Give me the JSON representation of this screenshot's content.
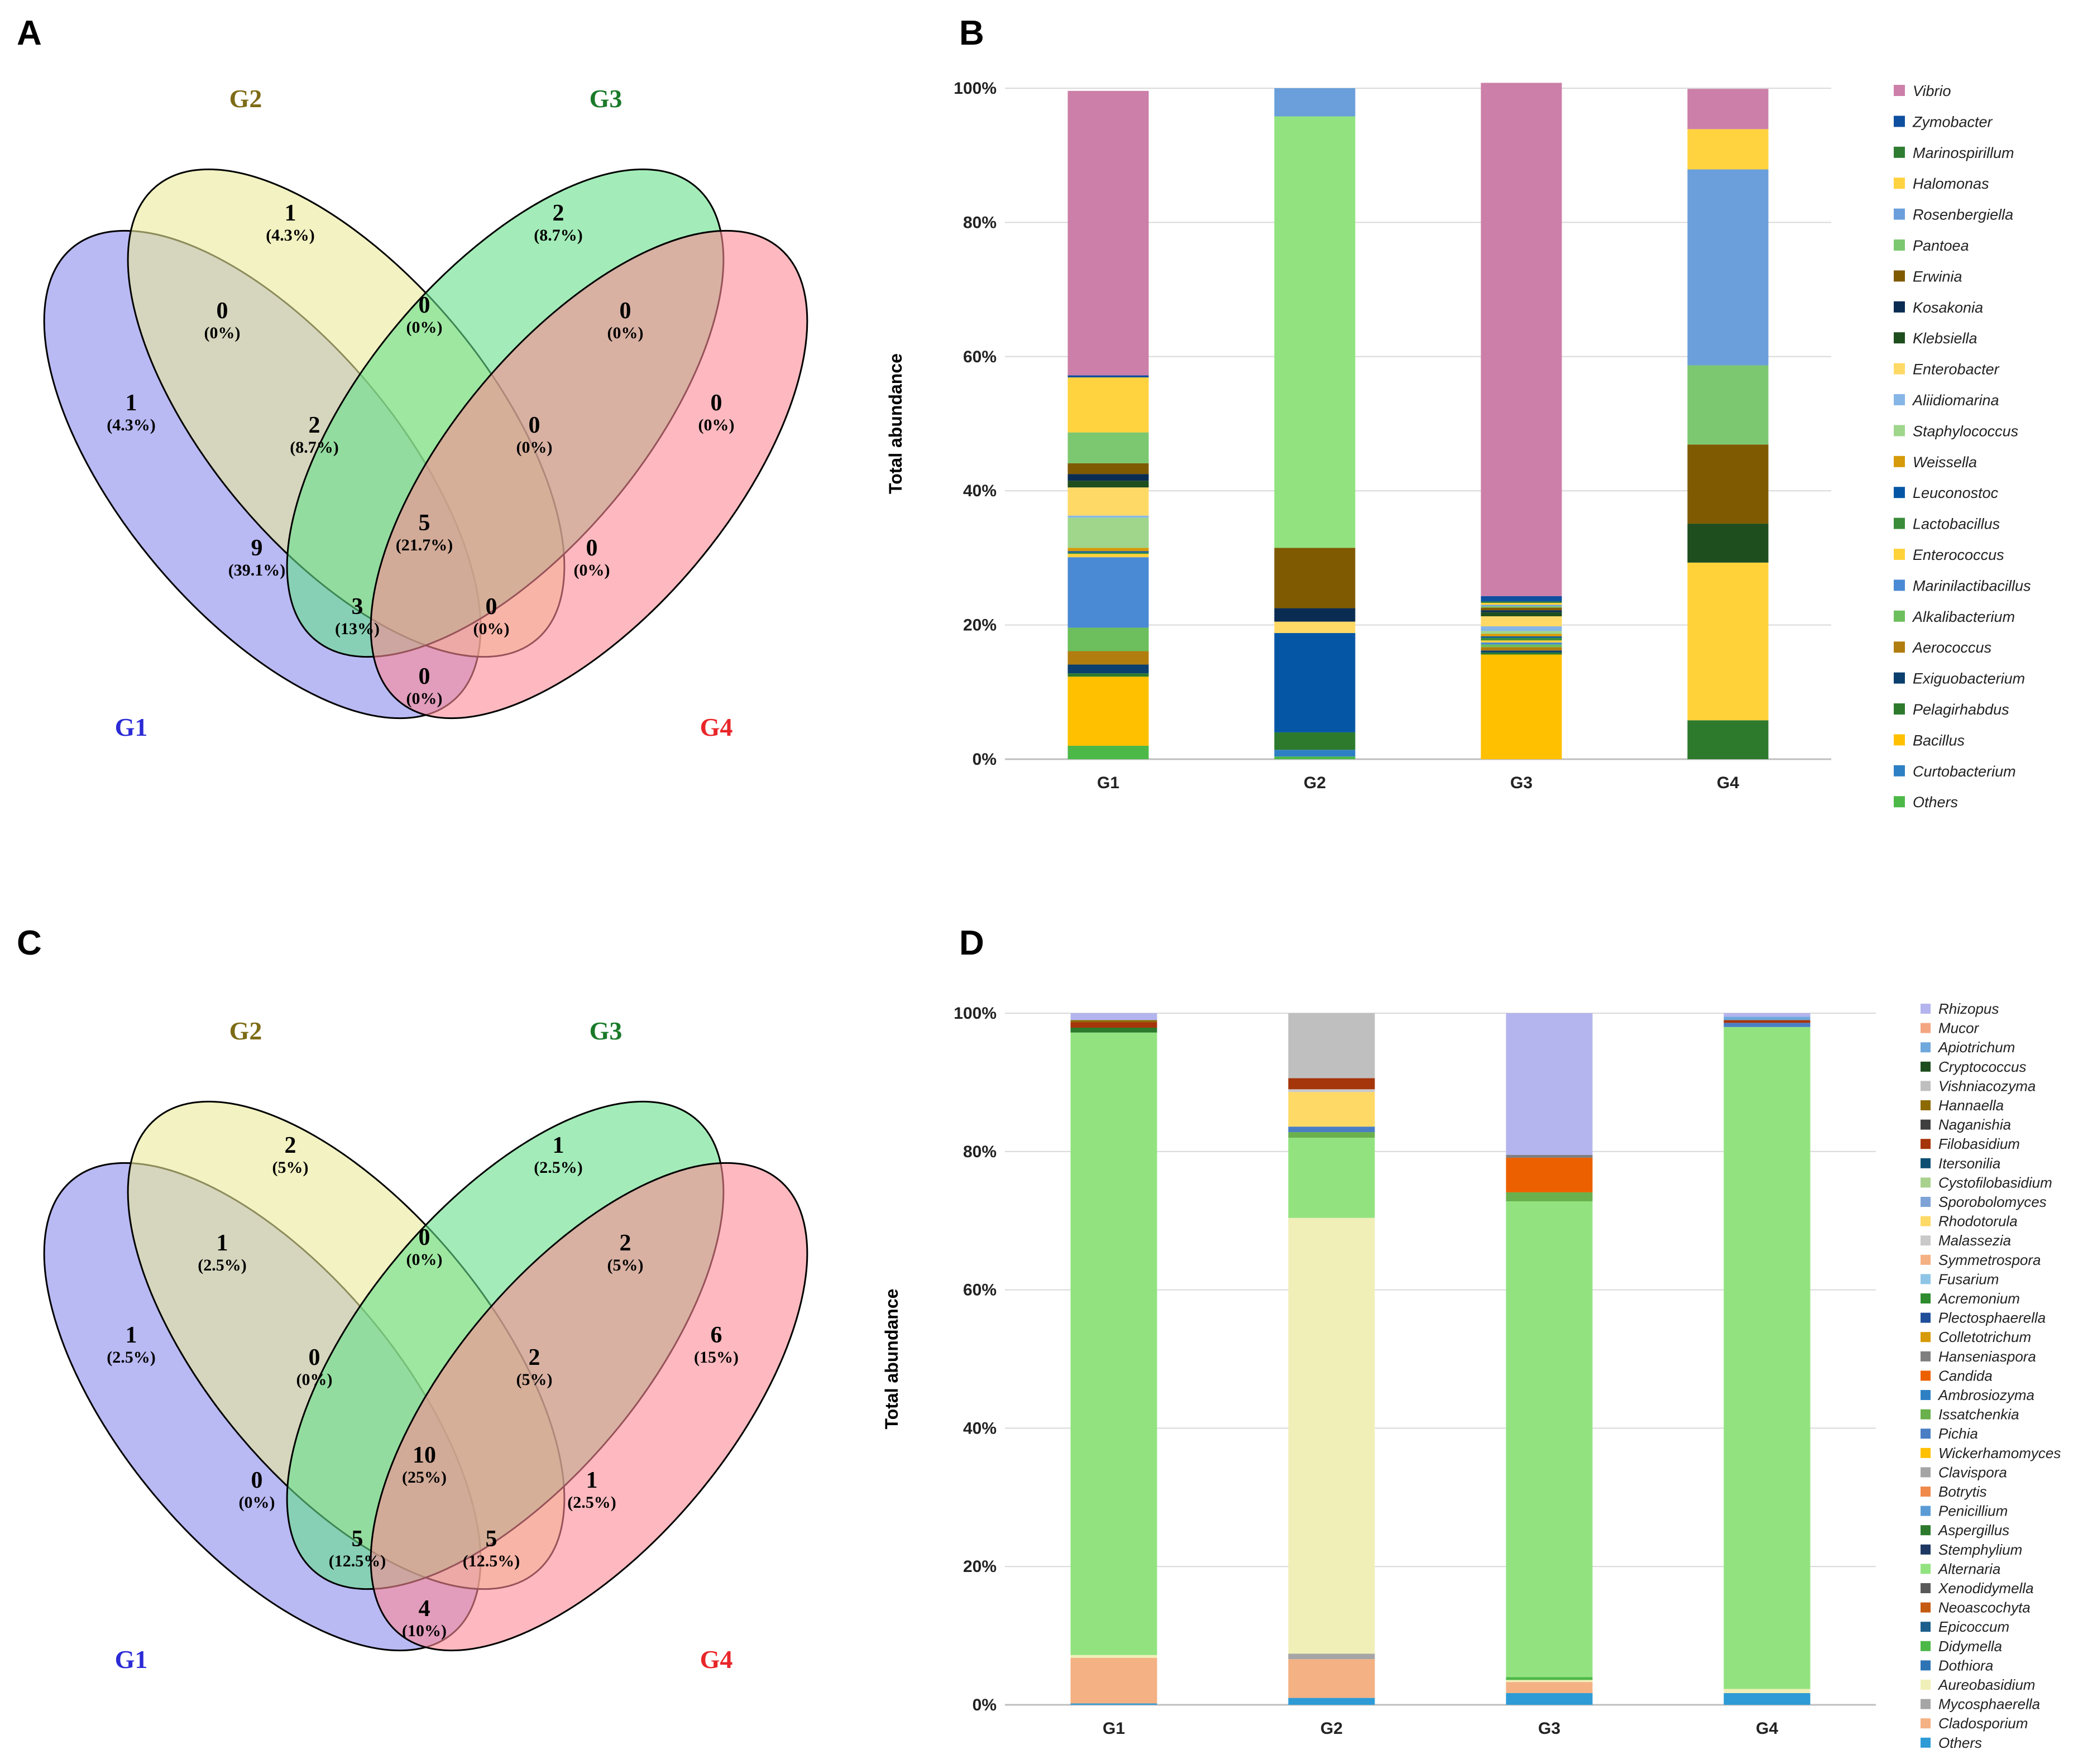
{
  "panels": {
    "A": "A",
    "B": "B",
    "C": "C",
    "D": "D"
  },
  "venn_labels": {
    "g1": "G1",
    "g2": "G2",
    "g3": "G3",
    "g4": "G4"
  },
  "venn_colors": {
    "g1": "#8a8aed",
    "g2": "#eaea9a",
    "g3": "#66e08a",
    "g4": "#fb8a94",
    "g1_label": "#2b2bd6",
    "g2_label": "#7d6b16",
    "g3_label": "#1a7a2a",
    "g4_label": "#e8262a"
  },
  "venn_A": {
    "g2_only": {
      "n": "1",
      "p": "(4.3%)"
    },
    "g3_only": {
      "n": "2",
      "p": "(8.7%)"
    },
    "g1_only": {
      "n": "1",
      "p": "(4.3%)"
    },
    "g4_only": {
      "n": "0",
      "p": "(0%)"
    },
    "g1g2": {
      "n": "0",
      "p": "(0%)"
    },
    "g2g3": {
      "n": "0",
      "p": "(0%)"
    },
    "g3g4": {
      "n": "0",
      "p": "(0%)"
    },
    "g1g2g3": {
      "n": "2",
      "p": "(8.7%)"
    },
    "g2g3g4": {
      "n": "0",
      "p": "(0%)"
    },
    "g1g3": {
      "n": "9",
      "p": "(39.1%)"
    },
    "all": {
      "n": "5",
      "p": "(21.7%)"
    },
    "g2g4": {
      "n": "0",
      "p": "(0%)"
    },
    "g1g3g4": {
      "n": "3",
      "p": "(13%)"
    },
    "g1g2g4": {
      "n": "0",
      "p": "(0%)"
    },
    "g1g4": {
      "n": "0",
      "p": "(0%)"
    }
  },
  "venn_C": {
    "g2_only": {
      "n": "2",
      "p": "(5%)"
    },
    "g3_only": {
      "n": "1",
      "p": "(2.5%)"
    },
    "g1_only": {
      "n": "1",
      "p": "(2.5%)"
    },
    "g4_only": {
      "n": "6",
      "p": "(15%)"
    },
    "g1g2": {
      "n": "1",
      "p": "(2.5%)"
    },
    "g2g3": {
      "n": "0",
      "p": "(0%)"
    },
    "g3g4": {
      "n": "2",
      "p": "(5%)"
    },
    "g1g2g3": {
      "n": "0",
      "p": "(0%)"
    },
    "g2g3g4": {
      "n": "2",
      "p": "(5%)"
    },
    "g1g3": {
      "n": "0",
      "p": "(0%)"
    },
    "all": {
      "n": "10",
      "p": "(25%)"
    },
    "g2g4": {
      "n": "1",
      "p": "(2.5%)"
    },
    "g1g3g4": {
      "n": "5",
      "p": "(12.5%)"
    },
    "g1g2g4": {
      "n": "5",
      "p": "(12.5%)"
    },
    "g1g4": {
      "n": "4",
      "p": "(10%)"
    }
  },
  "chart_data": [
    {
      "panel": "B",
      "type": "bar",
      "stacked": true,
      "ylabel": "Total abundance",
      "ylim": [
        0,
        100
      ],
      "yticks": [
        "0%",
        "20%",
        "40%",
        "60%",
        "80%",
        "100%"
      ],
      "grid": true,
      "legend_position": "right",
      "categories": [
        "G1",
        "G2",
        "G3",
        "G4"
      ],
      "series": [
        {
          "name": "Others",
          "color": "#4cb848",
          "values": [
            2.0,
            0.4,
            0,
            0
          ]
        },
        {
          "name": "Curtobacterium",
          "color": "#2e80c4",
          "values": [
            0,
            1.0,
            0,
            0
          ]
        },
        {
          "name": "Bacillus",
          "color": "#ffc000",
          "values": [
            10.3,
            0,
            15.6,
            0
          ]
        },
        {
          "name": "Pelagirhabdus",
          "color": "#2d7a2d",
          "values": [
            0.5,
            2.6,
            0.3,
            5.8
          ]
        },
        {
          "name": "Exiguobacterium",
          "color": "#0b3f6e",
          "values": [
            1.3,
            0,
            0.3,
            0
          ]
        },
        {
          "name": "Aerococcus",
          "color": "#b07d0e",
          "values": [
            2.0,
            0,
            0.5,
            0
          ]
        },
        {
          "name": "Alkalibacterium",
          "color": "#6cbf5c",
          "values": [
            3.5,
            0,
            0.4,
            0
          ]
        },
        {
          "name": "Marinilactibacillus",
          "color": "#4a8ad4",
          "values": [
            10.5,
            0,
            0.3,
            0
          ]
        },
        {
          "name": "Enterococcus",
          "color": "#ffd23a",
          "values": [
            0.5,
            0,
            0.3,
            23.5
          ]
        },
        {
          "name": "Lactobacillus",
          "color": "#3a8c3a",
          "values": [
            0.2,
            0,
            0.4,
            0
          ]
        },
        {
          "name": "Leuconostoc",
          "color": "#0557a6",
          "values": [
            0.2,
            14.8,
            0.2,
            0
          ]
        },
        {
          "name": "Weissella",
          "color": "#d69a0a",
          "values": [
            0.5,
            0,
            0.4,
            0
          ]
        },
        {
          "name": "Staphylococcus",
          "color": "#9fd68c",
          "values": [
            4.5,
            0,
            0.4,
            0
          ]
        },
        {
          "name": "Aliidiomarina",
          "color": "#86b6e6",
          "values": [
            0.3,
            0,
            0.7,
            0
          ]
        },
        {
          "name": "Enterobacter",
          "color": "#ffd966",
          "values": [
            4.2,
            1.7,
            1.5,
            0
          ]
        },
        {
          "name": "Klebsiella",
          "color": "#1e4d1e",
          "values": [
            1.0,
            0,
            0.6,
            5.8
          ]
        },
        {
          "name": "Kosakonia",
          "color": "#0a2c52",
          "values": [
            1.0,
            2.0,
            0.3,
            0
          ]
        },
        {
          "name": "Erwinia",
          "color": "#7f5a00",
          "values": [
            1.6,
            9.0,
            0.4,
            11.8
          ]
        },
        {
          "name": "Pantoea",
          "color": "#7cc870",
          "values": [
            4.6,
            0,
            0.2,
            11.8
          ]
        },
        {
          "name": "Rosenbergiella",
          "color": "#6a9fdb",
          "values": [
            0,
            0,
            0.2,
            29.2
          ]
        },
        {
          "name": "Halomonas",
          "color": "#ffd23f",
          "values": [
            8.2,
            0,
            0.3,
            6.0
          ]
        },
        {
          "name": "Marinospirillum",
          "color": "#2e7d32",
          "values": [
            0,
            0,
            0.2,
            0
          ]
        },
        {
          "name": "Zymobacter",
          "color": "#0f4fa0",
          "values": [
            0.3,
            0,
            0.8,
            0
          ]
        },
        {
          "name": "Vibrio",
          "color": "#cc7fa8",
          "values": [
            42.4,
            0,
            76.5,
            6.0
          ]
        },
        {
          "name": "Pantoea",
          "color": "#92e380",
          "values": [
            0,
            64.3,
            0,
            0
          ]
        },
        {
          "name": "Rosenbergiella",
          "color": "#6a9fdb",
          "values": [
            0,
            4.2,
            0,
            0
          ]
        }
      ],
      "legend": [
        "Vibrio",
        "Zymobacter",
        "Marinospirillum",
        "Halomonas",
        "Rosenbergiella",
        "Pantoea",
        "Erwinia",
        "Kosakonia",
        "Klebsiella",
        "Enterobacter",
        "Aliidiomarina",
        "Staphylococcus",
        "Weissella",
        "Leuconostoc",
        "Lactobacillus",
        "Enterococcus",
        "Marinilactibacillus",
        "Alkalibacterium",
        "Aerococcus",
        "Exiguobacterium",
        "Pelagirhabdus",
        "Bacillus",
        "Curtobacterium",
        "Others"
      ],
      "legend_colors": [
        "#cc7fa8",
        "#0f4fa0",
        "#2e7d32",
        "#ffd23f",
        "#6a9fdb",
        "#7cc870",
        "#7f5a00",
        "#0a2c52",
        "#1e4d1e",
        "#ffd966",
        "#86b6e6",
        "#9fd68c",
        "#d69a0a",
        "#0557a6",
        "#3a8c3a",
        "#ffd23a",
        "#4a8ad4",
        "#6cbf5c",
        "#b07d0e",
        "#0b3f6e",
        "#2d7a2d",
        "#ffc000",
        "#2e80c4",
        "#4cb848"
      ]
    },
    {
      "panel": "D",
      "type": "bar",
      "stacked": true,
      "ylabel": "Total abundance",
      "ylim": [
        0,
        100
      ],
      "yticks": [
        "0%",
        "20%",
        "40%",
        "60%",
        "80%",
        "100%"
      ],
      "grid": true,
      "legend_position": "right",
      "categories": [
        "G1",
        "G2",
        "G3",
        "G4"
      ],
      "series": [
        {
          "name": "Others",
          "color": "#2e9bd6",
          "values": [
            0.2,
            1.0,
            1.7,
            1.7
          ]
        },
        {
          "name": "Cladosporium",
          "color": "#f4b183",
          "values": [
            6.6,
            5.6,
            1.6,
            0
          ]
        },
        {
          "name": "Mycosphaerella",
          "color": "#a5a5a5",
          "values": [
            0,
            0.8,
            0,
            0
          ]
        },
        {
          "name": "Aureobasidium",
          "color": "#f0efb8",
          "values": [
            0.4,
            63.0,
            0.3,
            0.6
          ]
        },
        {
          "name": "Dothiora",
          "color": "#2e74b5",
          "values": [
            0,
            0,
            0,
            0
          ]
        },
        {
          "name": "Didymella",
          "color": "#4cb848",
          "values": [
            0,
            0,
            0.4,
            0
          ]
        },
        {
          "name": "Alternaria",
          "color": "#92e380",
          "values": [
            90.0,
            11.6,
            68.8,
            95.7
          ]
        },
        {
          "name": "Aspergillus",
          "color": "#2d7a2d",
          "values": [
            0.7,
            0,
            0,
            0
          ]
        },
        {
          "name": "Issatchenkia",
          "color": "#6ab04c",
          "values": [
            0,
            0.8,
            1.3,
            0
          ]
        },
        {
          "name": "Pichia",
          "color": "#4a7ec4",
          "values": [
            0,
            0.8,
            0,
            0.6
          ]
        },
        {
          "name": "Candida",
          "color": "#ec6000",
          "values": [
            0,
            0,
            5.0,
            0
          ]
        },
        {
          "name": "Hanseniaspora",
          "color": "#7f7f7f",
          "values": [
            0,
            0,
            0.4,
            0
          ]
        },
        {
          "name": "Rhodotorula",
          "color": "#ffd966",
          "values": [
            0,
            5.0,
            0,
            0
          ]
        },
        {
          "name": "Malassezia",
          "color": "#c9c9c9",
          "values": [
            0,
            0.4,
            0,
            0
          ]
        },
        {
          "name": "Filobasidium",
          "color": "#a5350a",
          "values": [
            0.8,
            1.6,
            0,
            0.4
          ]
        },
        {
          "name": "Hannaella",
          "color": "#8c6a00",
          "values": [
            0.3,
            0,
            0,
            0
          ]
        },
        {
          "name": "Vishniacozyma",
          "color": "#bfbfbf",
          "values": [
            0,
            9.4,
            0,
            0
          ]
        },
        {
          "name": "Apiotrichum",
          "color": "#6fa8dc",
          "values": [
            0,
            0,
            0,
            0.5
          ]
        },
        {
          "name": "Rhizopus",
          "color": "#b4b4ee",
          "values": [
            1.0,
            0,
            20.5,
            0.5
          ]
        }
      ],
      "legend": [
        "Rhizopus",
        "Mucor",
        "Apiotrichum",
        "Cryptococcus",
        "Vishniacozyma",
        "Hannaella",
        "Naganishia",
        "Filobasidium",
        "Itersonilia",
        "Cystofilobasidium",
        "Sporobolomyces",
        "Rhodotorula",
        "Malassezia",
        "Symmetrospora",
        "Fusarium",
        "Acremonium",
        "Plectosphaerella",
        "Colletotrichum",
        "Hanseniaspora",
        "Candida",
        "Ambrosiozyma",
        "Issatchenkia",
        "Pichia",
        "Wickerhamomyces",
        "Clavispora",
        "Botrytis",
        "Penicillium",
        "Aspergillus",
        "Stemphylium",
        "Alternaria",
        "Xenodidymella",
        "Neoascochyta",
        "Epicoccum",
        "Didymella",
        "Dothiora",
        "Aureobasidium",
        "Mycosphaerella",
        "Cladosporium",
        "Others"
      ],
      "legend_colors": [
        "#b4b4ee",
        "#f4a582",
        "#6fa8dc",
        "#1e4d1e",
        "#bfbfbf",
        "#8c6a00",
        "#404040",
        "#a5350a",
        "#0b4f72",
        "#a9d18e",
        "#7fa3d6",
        "#ffd966",
        "#c9c9c9",
        "#f4b183",
        "#8ec5e6",
        "#2e8b2e",
        "#1f4e9a",
        "#d69a0a",
        "#7f7f7f",
        "#ec6000",
        "#2e80c4",
        "#6ab04c",
        "#4a7ec4",
        "#ffc000",
        "#a5a5a5",
        "#f08a4b",
        "#5b9bd5",
        "#2d7a2d",
        "#1f3864",
        "#92e380",
        "#595959",
        "#c55a11",
        "#1c5f8c",
        "#4cb848",
        "#2e74b5",
        "#f0efb8",
        "#a5a5a5",
        "#f4b183",
        "#2e9bd6"
      ]
    }
  ]
}
